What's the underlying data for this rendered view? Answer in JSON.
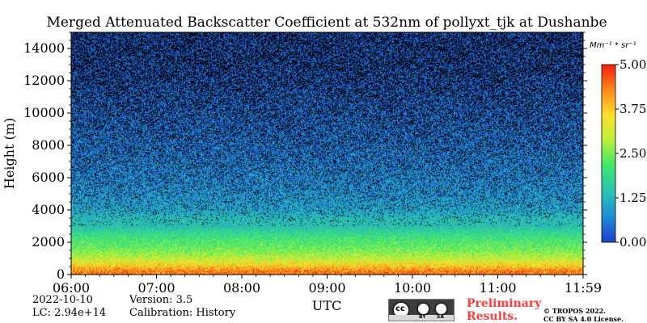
{
  "chart_data": {
    "type": "heatmap",
    "title": "Merged Attenuated Backscatter Coefficient at 532nm of pollyxt_tjk at Dushanbe",
    "xlabel": "UTC",
    "ylabel": "Height (m)",
    "x_tick_labels": [
      "06:00",
      "07:00",
      "08:00",
      "09:00",
      "10:00",
      "11:00",
      "11:59"
    ],
    "x_range": [
      "06:00",
      "11:59"
    ],
    "y_tick_labels": [
      "0",
      "2000",
      "4000",
      "6000",
      "8000",
      "10000",
      "12000",
      "14000"
    ],
    "ylim": [
      0,
      15000
    ],
    "colorbar": {
      "unit_label": "Mm⁻¹ * sr⁻¹",
      "range": [
        0.0,
        5.0
      ],
      "tick_labels": [
        "0.00",
        "1.25",
        "2.50",
        "3.75",
        "5.00"
      ],
      "colormap": [
        "#1f3fc8",
        "#1e8cd6",
        "#2cc3b0",
        "#3ce86f",
        "#b8f03a",
        "#ffe02a",
        "#ff8a1a",
        "#f21d0f"
      ]
    },
    "profile": [
      {
        "height": 200,
        "value": 4.4
      },
      {
        "height": 600,
        "value": 3.6
      },
      {
        "height": 1000,
        "value": 3.0
      },
      {
        "height": 1400,
        "value": 2.6
      },
      {
        "height": 1800,
        "value": 2.3
      },
      {
        "height": 2200,
        "value": 2.1
      },
      {
        "height": 2600,
        "value": 1.8
      },
      {
        "height": 3000,
        "value": 1.4
      },
      {
        "height": 3500,
        "value": 1.3
      },
      {
        "height": 4000,
        "value": 1.0
      },
      {
        "height": 5000,
        "value": 0.8
      },
      {
        "height": 6000,
        "value": 0.7
      },
      {
        "height": 8000,
        "value": 0.55
      },
      {
        "height": 10000,
        "value": 0.45
      },
      {
        "height": 12000,
        "value": 0.35
      },
      {
        "height": 14000,
        "value": 0.3
      },
      {
        "height": 15000,
        "value": 0.25
      }
    ]
  },
  "footer": {
    "date": "2022-10-10",
    "lc": "LC: 2.94e+14",
    "version": "Version: 3.5",
    "calibration": "Calibration: History",
    "preliminary_line1": "Preliminary",
    "preliminary_line2": "Results.",
    "copyright_line1": "© TROPOS 2022.",
    "copyright_line2": "CC BY SA 4.0 License.",
    "license_badge": {
      "left": "cc",
      "bottom_left": "BY",
      "bottom_right": "SA"
    }
  }
}
